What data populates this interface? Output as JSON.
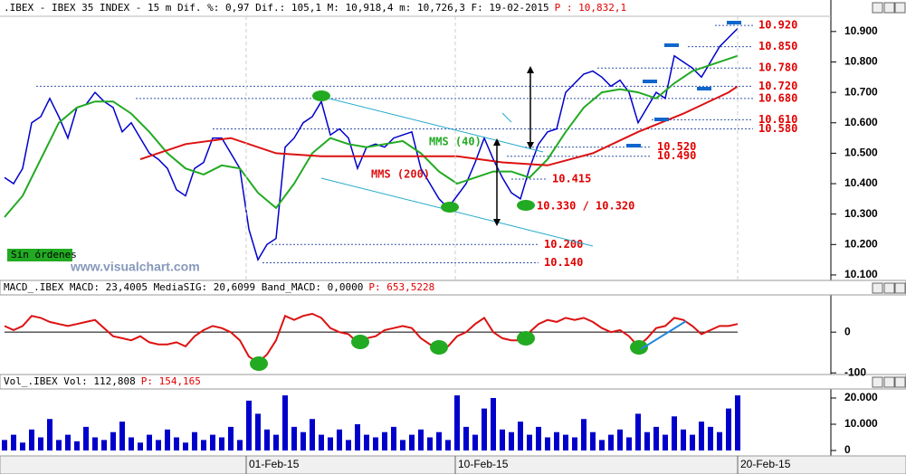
{
  "chart_data": [
    {
      "type": "line",
      "title": ".IBEX - IBEX 35 INDEX - 15 m Dif. %: 0,97 Dif.: 105,1 M: 10,918,4 m: 10,726,3 F: 19-02-2015",
      "last_price": "P : 10,832,1",
      "annotations": {
        "no_orders": "Sin órdenes",
        "watermark": "www.visualchart.com",
        "support": "10.330 / 10.320"
      },
      "xlim": [
        0,
        81
      ],
      "ylim": [
        10.082,
        10.95
      ],
      "yticks": [
        {
          "value": 10.9,
          "label": "10.900"
        },
        {
          "value": 10.8,
          "label": "10.800"
        },
        {
          "value": 10.7,
          "label": "10.700"
        },
        {
          "value": 10.6,
          "label": "10.600"
        },
        {
          "value": 10.5,
          "label": "10.500"
        },
        {
          "value": 10.4,
          "label": "10.400"
        },
        {
          "value": 10.3,
          "label": "10.300"
        },
        {
          "value": 10.2,
          "label": "10.200"
        },
        {
          "value": 10.1,
          "label": "10.100"
        }
      ],
      "levels": [
        {
          "value": 10.92,
          "label": "10.920"
        },
        {
          "value": 10.85,
          "label": "10.850"
        },
        {
          "value": 10.78,
          "label": "10.780"
        },
        {
          "value": 10.72,
          "label": "10.720"
        },
        {
          "value": 10.68,
          "label": "10.680"
        },
        {
          "value": 10.61,
          "label": "10.610"
        },
        {
          "value": 10.58,
          "label": "10.580"
        },
        {
          "value": 10.52,
          "label": "10.520"
        },
        {
          "value": 10.49,
          "label": "10.490"
        },
        {
          "value": 10.415,
          "label": "10.415"
        },
        {
          "value": 10.2,
          "label": "10.200"
        },
        {
          "value": 10.14,
          "label": "10.140"
        }
      ],
      "x": [
        0,
        1,
        2,
        3,
        4,
        5,
        6,
        7,
        8,
        9,
        10,
        11,
        12,
        13,
        14,
        15,
        16,
        17,
        18,
        19,
        20,
        21,
        22,
        23,
        24,
        25,
        26,
        27,
        28,
        29,
        30,
        31,
        32,
        33,
        34,
        35,
        36,
        37,
        38,
        39,
        40,
        41,
        42,
        43,
        44,
        45,
        46,
        47,
        48,
        49,
        50,
        51,
        52,
        53,
        54,
        55,
        56,
        57,
        58,
        59,
        60,
        61,
        62,
        63,
        64,
        65,
        66,
        67,
        68,
        69,
        70,
        71,
        72,
        73,
        74,
        75,
        76,
        77,
        78,
        79,
        80,
        81
      ],
      "series": [
        {
          "color": "#0000cc",
          "values": [
            10.42,
            10.4,
            10.45,
            10.6,
            10.62,
            10.68,
            10.62,
            10.55,
            10.65,
            10.66,
            10.7,
            10.67,
            10.65,
            10.57,
            10.6,
            10.55,
            10.5,
            10.48,
            10.45,
            10.38,
            10.36,
            10.45,
            10.47,
            10.55,
            10.55,
            10.5,
            10.45,
            10.25,
            10.15,
            10.2,
            10.22,
            10.52,
            10.55,
            10.6,
            10.62,
            10.67,
            10.56,
            10.58,
            10.55,
            10.45,
            10.52,
            10.53,
            10.52,
            10.55,
            10.56,
            10.57,
            10.45,
            10.4,
            10.35,
            10.32,
            10.36,
            10.4,
            10.47,
            10.55,
            10.48,
            10.42,
            10.37,
            10.35,
            10.45,
            10.53,
            10.57,
            10.58,
            10.7,
            10.73,
            10.76,
            10.77,
            10.75,
            10.72,
            10.74,
            10.7,
            10.6,
            10.65,
            10.7,
            10.68,
            10.82,
            10.8,
            10.78,
            10.75,
            10.8,
            10.85,
            10.88,
            10.91
          ]
        },
        {
          "name": "MMS (40)",
          "color": "#22aa22",
          "x": [
            0,
            2,
            4,
            6,
            8,
            10,
            12,
            14,
            16,
            18,
            20,
            22,
            24,
            26,
            28,
            30,
            32,
            34,
            36,
            38,
            40,
            42,
            44,
            46,
            48,
            50,
            52,
            54,
            56,
            58,
            60,
            62,
            64,
            66,
            68,
            70,
            72,
            74,
            76,
            78,
            80,
            81
          ],
          "values": [
            10.29,
            10.36,
            10.48,
            10.6,
            10.65,
            10.67,
            10.67,
            10.63,
            10.57,
            10.5,
            10.45,
            10.43,
            10.46,
            10.45,
            10.37,
            10.32,
            10.4,
            10.5,
            10.55,
            10.53,
            10.52,
            10.53,
            10.54,
            10.5,
            10.44,
            10.4,
            10.42,
            10.44,
            10.44,
            10.42,
            10.48,
            10.57,
            10.65,
            10.7,
            10.71,
            10.7,
            10.68,
            10.73,
            10.77,
            10.79,
            10.81,
            10.82
          ]
        },
        {
          "name": "MMS (200)",
          "color": "#dd1111",
          "x": [
            15,
            20,
            25,
            30,
            35,
            40,
            45,
            50,
            55,
            60,
            65,
            70,
            75,
            80,
            81
          ],
          "values": [
            10.48,
            10.53,
            10.55,
            10.5,
            10.49,
            10.49,
            10.49,
            10.49,
            10.47,
            10.46,
            10.5,
            10.57,
            10.63,
            10.7,
            10.72
          ]
        }
      ]
    },
    {
      "type": "line",
      "title": "MACD_.IBEX MACD: 23,4005 MediaSIG: 20,6099 Band_MACD: 0,0000",
      "last_price": "P: 653,5228",
      "xlim": [
        0,
        81
      ],
      "ylim": [
        -104,
        87
      ],
      "yticks": [
        0,
        -100
      ],
      "zero_line": true,
      "x": [
        0,
        1,
        2,
        3,
        4,
        5,
        6,
        7,
        8,
        9,
        10,
        11,
        12,
        13,
        14,
        15,
        16,
        17,
        18,
        19,
        20,
        21,
        22,
        23,
        24,
        25,
        26,
        27,
        28,
        29,
        30,
        31,
        32,
        33,
        34,
        35,
        36,
        37,
        38,
        39,
        40,
        41,
        42,
        43,
        44,
        45,
        46,
        47,
        48,
        49,
        50,
        51,
        52,
        53,
        54,
        55,
        56,
        57,
        58,
        59,
        60,
        61,
        62,
        63,
        64,
        65,
        66,
        67,
        68,
        69,
        70,
        71,
        72,
        73,
        74,
        75,
        76,
        77,
        78,
        79,
        80,
        81
      ],
      "series": [
        {
          "color": "#dd1111",
          "values": [
            15,
            5,
            15,
            40,
            35,
            25,
            20,
            15,
            20,
            25,
            30,
            10,
            -10,
            -15,
            -20,
            -10,
            -25,
            -30,
            -30,
            -25,
            -35,
            -10,
            5,
            15,
            10,
            0,
            -20,
            -60,
            -75,
            -55,
            -20,
            40,
            30,
            40,
            45,
            35,
            10,
            0,
            -5,
            -25,
            -15,
            -10,
            5,
            10,
            15,
            10,
            -15,
            -30,
            -40,
            -35,
            -10,
            0,
            20,
            35,
            0,
            -15,
            -20,
            -20,
            0,
            20,
            30,
            25,
            35,
            30,
            35,
            25,
            10,
            0,
            5,
            -10,
            -35,
            -15,
            10,
            15,
            35,
            30,
            15,
            -5,
            5,
            15,
            15,
            20
          ]
        }
      ]
    },
    {
      "type": "bar",
      "title": "Vol_.IBEX Vol: 112,808",
      "last_price": "P: 154,165",
      "xlim": [
        0,
        81
      ],
      "ylim": [
        -1380,
        23450
      ],
      "yticks": [
        {
          "value": 20000,
          "label": "20.000"
        },
        {
          "value": 10000,
          "label": "10.000"
        },
        0
      ],
      "xticks": [
        {
          "value": 26.7,
          "label": "01-Feb-15"
        },
        {
          "value": 49.8,
          "label": "10-Feb-15"
        },
        {
          "value": 81,
          "label": "20-Feb-15"
        }
      ],
      "color": "#0000cc",
      "values": [
        4000,
        6000,
        3000,
        8000,
        5000,
        12000,
        4000,
        6000,
        3500,
        9000,
        5000,
        4000,
        7000,
        11000,
        5000,
        3000,
        6000,
        4000,
        8000,
        5000,
        3000,
        7000,
        4000,
        6000,
        5000,
        9000,
        4000,
        19000,
        14000,
        8000,
        6000,
        21000,
        9000,
        7000,
        12000,
        6000,
        5000,
        8000,
        4000,
        10000,
        6000,
        5000,
        7000,
        9000,
        4000,
        6000,
        8000,
        5000,
        7000,
        4000,
        21000,
        9000,
        6000,
        16000,
        20000,
        8000,
        7000,
        11000,
        6000,
        9000,
        5000,
        7000,
        6000,
        5000,
        12000,
        7000,
        4000,
        6000,
        8000,
        5000,
        14000,
        7000,
        9000,
        6000,
        13000,
        8000,
        6000,
        11000,
        9000,
        7000,
        16000,
        21000
      ]
    }
  ]
}
